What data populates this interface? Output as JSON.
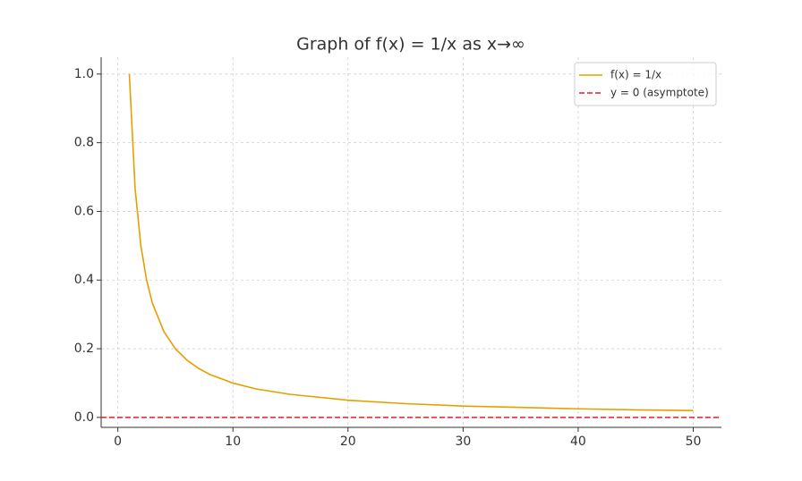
{
  "chart_data": {
    "type": "line",
    "title": "Graph of f(x) = 1/x as x→∞",
    "x": [
      1,
      1.5,
      2,
      2.5,
      3,
      4,
      5,
      6,
      7,
      8,
      10,
      12,
      15,
      20,
      25,
      30,
      35,
      40,
      45,
      50
    ],
    "series": [
      {
        "name": "f(x) = 1/x",
        "color": "#e69f00",
        "values": [
          1,
          0.667,
          0.5,
          0.4,
          0.333,
          0.25,
          0.2,
          0.167,
          0.143,
          0.125,
          0.1,
          0.083,
          0.067,
          0.05,
          0.04,
          0.033,
          0.029,
          0.025,
          0.022,
          0.02
        ]
      }
    ],
    "hlines": [
      {
        "name": "y = 0 (asymptote)",
        "y": 0,
        "color": "#e02020",
        "dashed": true
      }
    ],
    "xlim": [
      -1.45,
      52.45
    ],
    "ylim": [
      -0.029,
      1.049
    ],
    "xticks": [
      0,
      10,
      20,
      30,
      40,
      50
    ],
    "yticks": [
      {
        "value": 0,
        "label": "0.0"
      },
      {
        "value": 0.2,
        "label": "0.2"
      },
      {
        "value": 0.4,
        "label": "0.4"
      },
      {
        "value": 0.6,
        "label": "0.6"
      },
      {
        "value": 0.8,
        "label": "0.8"
      },
      {
        "value": 1,
        "label": "1.0"
      }
    ],
    "grid": true,
    "legend": "upper-right"
  }
}
